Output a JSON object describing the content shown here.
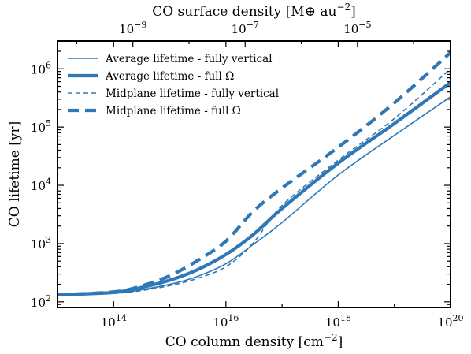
{
  "chart_data": {
    "type": "line",
    "xlabel": "CO column density [cm−2]",
    "ylabel": "CO lifetime [yr]",
    "top_xlabel": "CO surface density [M⊕ au−2]",
    "xscale": "log",
    "yscale": "log",
    "xlim": [
      10000000000000.0,
      1e+20
    ],
    "ylim": [
      80,
      3000000
    ],
    "x_ticks": [
      {
        "value": 100000000000000.0,
        "base": "10",
        "exp": "14"
      },
      {
        "value": 1e+16,
        "base": "10",
        "exp": "16"
      },
      {
        "value": 1e+18,
        "base": "10",
        "exp": "18"
      },
      {
        "value": 1e+20,
        "base": "10",
        "exp": "20"
      }
    ],
    "y_ticks": [
      {
        "value": 100,
        "base": "10",
        "exp": "2"
      },
      {
        "value": 1000,
        "base": "10",
        "exp": "3"
      },
      {
        "value": 10000,
        "base": "10",
        "exp": "4"
      },
      {
        "value": 100000,
        "base": "10",
        "exp": "5"
      },
      {
        "value": 1000000,
        "base": "10",
        "exp": "6"
      }
    ],
    "top_ticks": [
      {
        "value": 220000000000000.0,
        "base": "10",
        "exp": "−9"
      },
      {
        "value": 2.2e+16,
        "base": "10",
        "exp": "−7"
      },
      {
        "value": 2.2e+18,
        "base": "10",
        "exp": "−5"
      }
    ],
    "grid": false,
    "legend_position": "top-left",
    "colors": {
      "series": "#2f78b5",
      "axes": "#000000"
    },
    "series": [
      {
        "name": "Average lifetime - fully vertical",
        "style": "thin-solid",
        "x": [
          10000000000000.0,
          100000000000000.0,
          300000000000000.0,
          1000000000000000.0,
          3000000000000000.0,
          1e+16,
          3e+16,
          1e+17,
          1e+18,
          1e+19,
          1e+20
        ],
        "y": [
          132,
          140,
          160,
          200,
          270,
          450,
          950,
          2300,
          15000,
          72000,
          330000
        ]
      },
      {
        "name": "Average lifetime - full Ω",
        "style": "thick-solid",
        "x": [
          10000000000000.0,
          100000000000000.0,
          300000000000000.0,
          1000000000000000.0,
          3000000000000000.0,
          1e+16,
          3e+16,
          1e+17,
          1e+18,
          1e+19,
          1e+20
        ],
        "y": [
          132,
          145,
          175,
          235,
          350,
          650,
          1400,
          4000,
          24000,
          115000,
          580000
        ]
      },
      {
        "name": "Midplane lifetime - fully vertical",
        "style": "thin-dashed",
        "x": [
          10000000000000.0,
          100000000000000.0,
          300000000000000.0,
          1000000000000000.0,
          3000000000000000.0,
          1e+16,
          3e+16,
          1e+17,
          1e+18,
          1e+19,
          1e+20
        ],
        "y": [
          132,
          140,
          155,
          190,
          250,
          400,
          1000,
          4500,
          27000,
          140000,
          1000000
        ]
      },
      {
        "name": "Midplane lifetime - full Ω",
        "style": "thick-dashed",
        "x": [
          10000000000000.0,
          100000000000000.0,
          300000000000000.0,
          1000000000000000.0,
          3000000000000000.0,
          1e+16,
          3e+16,
          1e+17,
          1e+18,
          1e+19,
          1e+20
        ],
        "y": [
          132,
          148,
          185,
          280,
          500,
          1100,
          3500,
          9000,
          45000,
          260000,
          1900000
        ]
      }
    ]
  }
}
